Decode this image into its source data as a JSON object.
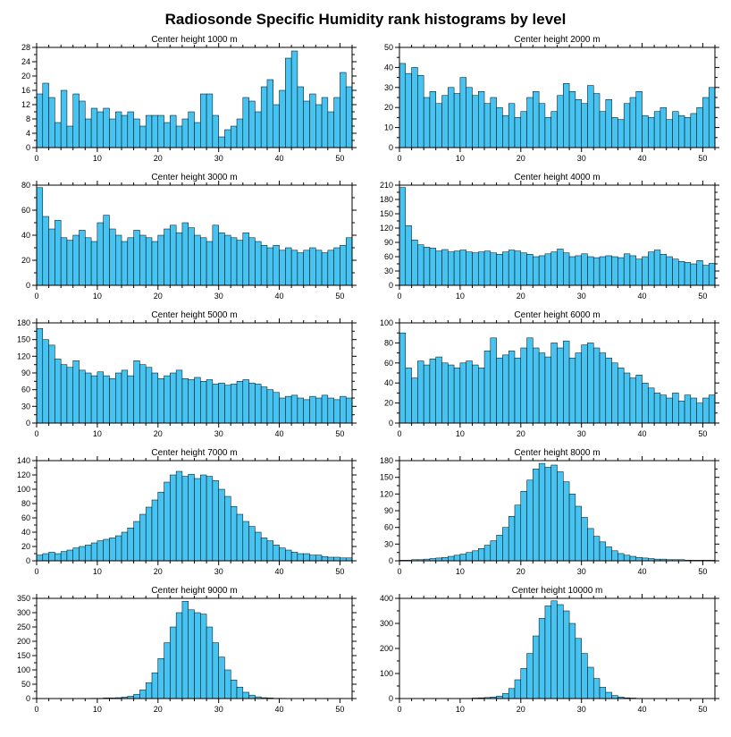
{
  "page_title": "Radiosonde Specific Humidity rank histograms by level",
  "style": {
    "bar_color": "#46C3F0",
    "bar_edge_color": "#000000",
    "axis_color": "#000000",
    "background": "#FFFFFF"
  },
  "chart_data": [
    {
      "type": "bar",
      "title": "Center height 1000 m",
      "xlim": [
        0,
        52
      ],
      "ylim": [
        0,
        28
      ],
      "xticks": [
        0,
        10,
        20,
        30,
        40,
        50
      ],
      "yticks": [
        0,
        4,
        8,
        12,
        16,
        20,
        24,
        28
      ],
      "xminor": 2,
      "yminor": 2,
      "values": [
        15,
        18,
        14,
        7,
        16,
        6,
        15,
        13,
        8,
        11,
        10,
        11,
        8,
        10,
        9,
        10,
        8,
        6,
        9,
        9,
        9,
        7,
        9,
        6,
        8,
        10,
        7,
        15,
        15,
        9,
        3,
        5,
        6,
        8,
        14,
        13,
        10,
        17,
        19,
        12,
        16,
        25,
        27,
        17,
        13,
        15,
        12,
        14,
        10,
        14,
        21,
        17
      ]
    },
    {
      "type": "bar",
      "title": "Center height 2000 m",
      "xlim": [
        0,
        52
      ],
      "ylim": [
        0,
        50
      ],
      "xticks": [
        0,
        10,
        20,
        30,
        40,
        50
      ],
      "yticks": [
        0,
        10,
        20,
        30,
        40,
        50
      ],
      "xminor": 2,
      "yminor": 5,
      "values": [
        42,
        37,
        40,
        36,
        25,
        28,
        22,
        26,
        30,
        27,
        35,
        30,
        26,
        28,
        22,
        25,
        20,
        16,
        22,
        15,
        18,
        25,
        28,
        22,
        15,
        18,
        26,
        32,
        28,
        24,
        22,
        31,
        27,
        18,
        24,
        15,
        14,
        22,
        25,
        28,
        16,
        15,
        18,
        20,
        14,
        18,
        16,
        15,
        17,
        20,
        25,
        30
      ]
    },
    {
      "type": "bar",
      "title": "Center height 3000 m",
      "xlim": [
        0,
        52
      ],
      "ylim": [
        0,
        80
      ],
      "xticks": [
        0,
        10,
        20,
        30,
        40,
        50
      ],
      "yticks": [
        0,
        20,
        40,
        60,
        80
      ],
      "xminor": 2,
      "yminor": 10,
      "values": [
        78,
        55,
        45,
        52,
        38,
        36,
        40,
        44,
        38,
        35,
        50,
        56,
        45,
        40,
        35,
        38,
        44,
        40,
        38,
        35,
        40,
        45,
        48,
        42,
        50,
        46,
        40,
        38,
        35,
        48,
        42,
        40,
        38,
        36,
        42,
        38,
        35,
        32,
        30,
        32,
        28,
        30,
        28,
        26,
        28,
        30,
        28,
        26,
        28,
        30,
        32,
        38
      ]
    },
    {
      "type": "bar",
      "title": "Center height 4000 m",
      "xlim": [
        0,
        52
      ],
      "ylim": [
        0,
        210
      ],
      "xticks": [
        0,
        10,
        20,
        30,
        40,
        50
      ],
      "yticks": [
        0,
        30,
        60,
        90,
        120,
        150,
        180,
        210
      ],
      "xminor": 2,
      "yminor": 15,
      "values": [
        205,
        125,
        95,
        85,
        80,
        78,
        72,
        75,
        70,
        72,
        74,
        70,
        68,
        70,
        72,
        68,
        65,
        70,
        74,
        72,
        68,
        65,
        60,
        62,
        66,
        70,
        76,
        68,
        60,
        62,
        66,
        60,
        58,
        60,
        62,
        60,
        58,
        66,
        62,
        55,
        60,
        70,
        74,
        65,
        60,
        55,
        50,
        48,
        45,
        52,
        42,
        46
      ]
    },
    {
      "type": "bar",
      "title": "Center height 5000 m",
      "xlim": [
        0,
        52
      ],
      "ylim": [
        0,
        180
      ],
      "xticks": [
        0,
        10,
        20,
        30,
        40,
        50
      ],
      "yticks": [
        0,
        30,
        60,
        90,
        120,
        150,
        180
      ],
      "xminor": 2,
      "yminor": 15,
      "values": [
        170,
        150,
        140,
        115,
        105,
        100,
        112,
        95,
        90,
        85,
        92,
        85,
        80,
        90,
        95,
        85,
        112,
        105,
        100,
        90,
        80,
        85,
        90,
        95,
        80,
        78,
        82,
        75,
        78,
        70,
        72,
        68,
        70,
        75,
        78,
        72,
        70,
        65,
        60,
        55,
        45,
        48,
        50,
        45,
        42,
        48,
        45,
        50,
        45,
        42,
        48,
        45
      ]
    },
    {
      "type": "bar",
      "title": "Center height 6000 m",
      "xlim": [
        0,
        52
      ],
      "ylim": [
        0,
        100
      ],
      "xticks": [
        0,
        10,
        20,
        30,
        40,
        50
      ],
      "yticks": [
        0,
        20,
        40,
        60,
        80,
        100
      ],
      "xminor": 2,
      "yminor": 10,
      "values": [
        90,
        55,
        45,
        62,
        58,
        64,
        66,
        60,
        58,
        55,
        60,
        62,
        58,
        55,
        72,
        85,
        65,
        68,
        72,
        65,
        75,
        85,
        75,
        70,
        66,
        80,
        75,
        82,
        65,
        70,
        78,
        80,
        75,
        70,
        65,
        60,
        55,
        50,
        45,
        48,
        40,
        35,
        30,
        28,
        25,
        30,
        22,
        28,
        25,
        20,
        25,
        28
      ]
    },
    {
      "type": "bar",
      "title": "Center height 7000 m",
      "xlim": [
        0,
        52
      ],
      "ylim": [
        0,
        140
      ],
      "xticks": [
        0,
        10,
        20,
        30,
        40,
        50
      ],
      "yticks": [
        0,
        20,
        40,
        60,
        80,
        100,
        120,
        140
      ],
      "xminor": 2,
      "yminor": 10,
      "values": [
        8,
        10,
        12,
        10,
        13,
        15,
        18,
        20,
        22,
        25,
        28,
        30,
        32,
        35,
        40,
        46,
        55,
        65,
        75,
        85,
        96,
        110,
        120,
        125,
        118,
        121,
        115,
        120,
        118,
        112,
        100,
        90,
        76,
        65,
        55,
        48,
        40,
        32,
        28,
        22,
        18,
        15,
        12,
        10,
        10,
        8,
        8,
        6,
        5,
        5,
        4,
        4
      ]
    },
    {
      "type": "bar",
      "title": "Center height 8000 m",
      "xlim": [
        0,
        52
      ],
      "ylim": [
        0,
        180
      ],
      "xticks": [
        0,
        10,
        20,
        30,
        40,
        50
      ],
      "yticks": [
        0,
        30,
        60,
        90,
        120,
        150,
        180
      ],
      "xminor": 2,
      "yminor": 15,
      "values": [
        1,
        1,
        2,
        2,
        3,
        4,
        5,
        6,
        8,
        10,
        12,
        15,
        18,
        22,
        28,
        36,
        46,
        60,
        80,
        100,
        125,
        145,
        165,
        175,
        168,
        172,
        160,
        142,
        120,
        98,
        78,
        58,
        44,
        34,
        25,
        18,
        13,
        10,
        8,
        6,
        5,
        4,
        3,
        3,
        2,
        2,
        2,
        1,
        1,
        1,
        1,
        1
      ]
    },
    {
      "type": "bar",
      "title": "Center height 9000 m",
      "xlim": [
        0,
        52
      ],
      "ylim": [
        0,
        350
      ],
      "xticks": [
        0,
        10,
        20,
        30,
        40,
        50
      ],
      "yticks": [
        0,
        50,
        100,
        150,
        200,
        250,
        300,
        350
      ],
      "xminor": 2,
      "yminor": 25,
      "values": [
        0,
        0,
        0,
        0,
        0,
        0,
        0,
        0,
        0,
        1,
        1,
        2,
        2,
        3,
        5,
        8,
        15,
        30,
        55,
        90,
        140,
        195,
        250,
        300,
        340,
        310,
        300,
        295,
        250,
        195,
        145,
        100,
        65,
        40,
        22,
        12,
        6,
        3,
        2,
        1,
        1,
        0,
        0,
        0,
        0,
        0,
        0,
        0,
        0,
        0,
        0,
        0
      ]
    },
    {
      "type": "bar",
      "title": "Center height 10000 m",
      "xlim": [
        0,
        52
      ],
      "ylim": [
        0,
        400
      ],
      "xticks": [
        0,
        10,
        20,
        30,
        40,
        50
      ],
      "yticks": [
        0,
        100,
        200,
        300,
        400
      ],
      "xminor": 2,
      "yminor": 50,
      "values": [
        0,
        0,
        0,
        0,
        0,
        0,
        0,
        0,
        0,
        0,
        1,
        1,
        2,
        3,
        4,
        6,
        10,
        20,
        40,
        75,
        120,
        180,
        250,
        320,
        370,
        390,
        375,
        350,
        300,
        240,
        180,
        125,
        80,
        45,
        25,
        12,
        6,
        3,
        2,
        1,
        0,
        0,
        0,
        0,
        0,
        0,
        0,
        0,
        0,
        0,
        0,
        0
      ]
    }
  ]
}
